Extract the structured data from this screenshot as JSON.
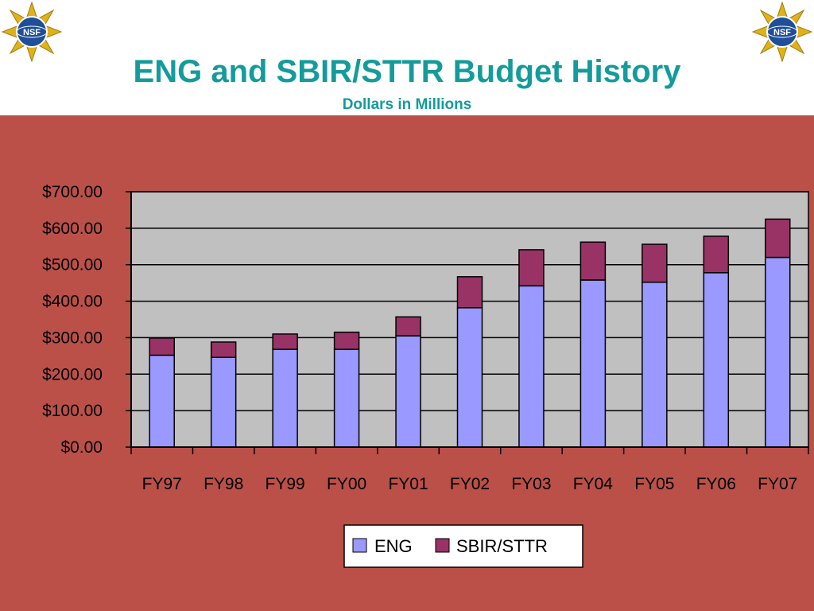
{
  "header": {
    "title": "ENG and SBIR/STTR Budget History",
    "subtitle": "Dollars in Millions",
    "logo_icon": "nsf-seal-icon"
  },
  "colors": {
    "title": "#149b9b",
    "panel_background": "#bb5049",
    "plot_background": "#c0c0c0",
    "eng": "#9999ff",
    "sbir_sttr": "#993366"
  },
  "chart_data": {
    "type": "bar",
    "stacked": true,
    "categories": [
      "FY97",
      "FY98",
      "FY99",
      "FY00",
      "FY01",
      "FY02",
      "FY03",
      "FY04",
      "FY05",
      "FY06",
      "FY07"
    ],
    "series": [
      {
        "name": "ENG",
        "color": "#9999ff",
        "values": [
          252,
          246,
          268,
          268,
          305,
          382,
          442,
          458,
          452,
          478,
          520
        ]
      },
      {
        "name": "SBIR/STTR",
        "color": "#993366",
        "values": [
          47,
          42,
          42,
          47,
          52,
          85,
          99,
          104,
          104,
          100,
          105
        ]
      }
    ],
    "ylim": [
      0,
      700
    ],
    "yticks": [
      0,
      100,
      200,
      300,
      400,
      500,
      600,
      700
    ],
    "ytick_labels": [
      "$0.00",
      "$100.00",
      "$200.00",
      "$300.00",
      "$400.00",
      "$500.00",
      "$600.00",
      "$700.00"
    ],
    "grid": true,
    "legend": {
      "position": "bottom",
      "entries": [
        "ENG",
        "SBIR/STTR"
      ]
    }
  }
}
